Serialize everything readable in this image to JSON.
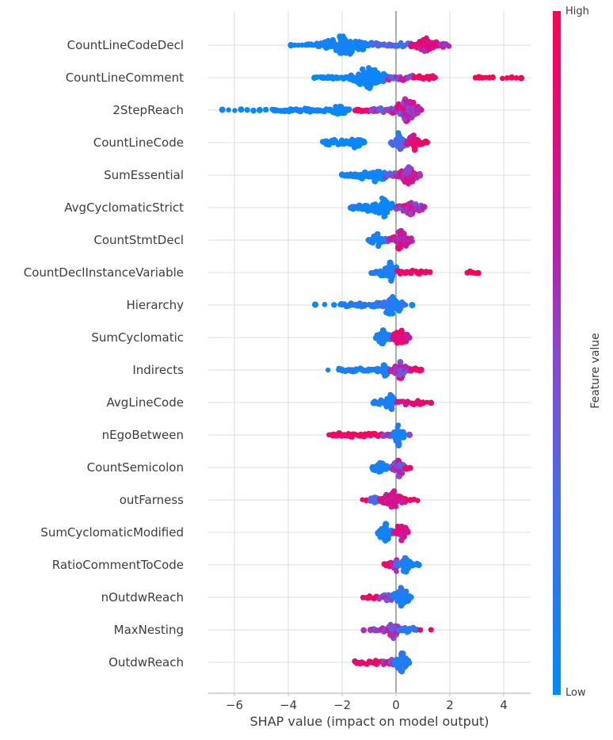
{
  "chart_data": {
    "type": "scatter",
    "variant": "shap-beeswarm-summary",
    "xlabel": "SHAP value (impact on model output)",
    "xlim": [
      -6.95,
      5.05
    ],
    "x_ticks": [
      {
        "v": -6,
        "label": "−6"
      },
      {
        "v": -4,
        "label": "−4"
      },
      {
        "v": -2,
        "label": "−2"
      },
      {
        "v": 0,
        "label": "0"
      },
      {
        "v": 2,
        "label": "2"
      },
      {
        "v": 4,
        "label": "4"
      }
    ],
    "grid": true,
    "colorbar": {
      "title": "Feature value",
      "high_label": "High",
      "low_label": "Low",
      "stops": [
        {
          "pos": 0.0,
          "color": "#008bfb"
        },
        {
          "pos": 0.3,
          "color": "#4b6ae8"
        },
        {
          "pos": 0.5,
          "color": "#8c47cf"
        },
        {
          "pos": 0.65,
          "color": "#b820ab"
        },
        {
          "pos": 0.8,
          "color": "#dd0d85"
        },
        {
          "pos": 1.0,
          "color": "#ff0051"
        }
      ]
    },
    "colors": {
      "low": "#008bfb",
      "high": "#ff0051",
      "grid": "#dcdcdc",
      "zero_line": "#999999",
      "axis_line": "#c9c9c9",
      "text": "#3d3d3d"
    },
    "cluster_format": [
      "x_start",
      "x_end",
      "n_points",
      "v_spread_px",
      "shape",
      "color_t_mean",
      "color_t_jitter"
    ],
    "features": [
      {
        "name": "CountLineCodeDecl",
        "clusters": [
          [
            -3.9,
            -3.35,
            5,
            1.2,
            "sparse",
            0.04,
            0.04
          ],
          [
            -3.35,
            -2.95,
            7,
            2,
            "line",
            0.05,
            0.05
          ],
          [
            -2.95,
            -1.0,
            80,
            13,
            "blob",
            0.08,
            0.1
          ],
          [
            -1.0,
            0.55,
            22,
            3.5,
            "line",
            0.3,
            0.25
          ],
          [
            0.55,
            1.65,
            42,
            10,
            "blob",
            0.8,
            0.22
          ],
          [
            1.65,
            2.0,
            6,
            3,
            "line",
            0.55,
            0.15
          ]
        ]
      },
      {
        "name": "CountLineComment",
        "clusters": [
          [
            -3.0,
            -1.7,
            20,
            2.5,
            "line",
            0.04,
            0.06
          ],
          [
            -1.7,
            -0.35,
            65,
            15,
            "blob",
            0.04,
            0.08
          ],
          [
            -0.35,
            0.65,
            18,
            4,
            "line",
            0.5,
            0.3
          ],
          [
            0.65,
            1.5,
            13,
            3,
            "line",
            0.93,
            0.08
          ],
          [
            2.95,
            3.6,
            6,
            1,
            "sparse",
            0.97,
            0.03
          ],
          [
            3.95,
            4.65,
            5,
            1,
            "sparse",
            0.97,
            0.03
          ]
        ]
      },
      {
        "name": "2StepReach",
        "clusters": [
          [
            -6.45,
            -4.6,
            9,
            1.2,
            "sparse",
            0.03,
            0.03
          ],
          [
            -4.55,
            -2.55,
            30,
            2.5,
            "line",
            0.04,
            0.05
          ],
          [
            -2.5,
            -1.75,
            18,
            7,
            "blob",
            0.05,
            0.06
          ],
          [
            -1.55,
            -0.9,
            12,
            2.5,
            "line",
            0.88,
            0.12
          ],
          [
            -0.9,
            -0.2,
            15,
            3,
            "line",
            0.5,
            0.35
          ],
          [
            -0.2,
            0.95,
            60,
            15,
            "blob",
            0.62,
            0.32
          ]
        ]
      },
      {
        "name": "CountLineCode",
        "clusters": [
          [
            -2.75,
            -1.45,
            28,
            5,
            "line",
            0.05,
            0.07
          ],
          [
            -1.75,
            -1.15,
            16,
            9,
            "blob",
            0.05,
            0.07
          ],
          [
            -0.2,
            0.45,
            32,
            13,
            "blob",
            0.3,
            0.25
          ],
          [
            0.4,
            0.95,
            26,
            10,
            "blob",
            0.8,
            0.2
          ],
          [
            0.9,
            1.15,
            5,
            2.5,
            "line",
            0.93,
            0.07
          ]
        ]
      },
      {
        "name": "SumEssential",
        "clusters": [
          [
            -2.0,
            -0.4,
            45,
            10,
            "taper-l",
            0.06,
            0.08
          ],
          [
            -0.4,
            0.0,
            10,
            4,
            "line",
            0.45,
            0.25
          ],
          [
            0.0,
            0.9,
            42,
            12,
            "blob",
            0.68,
            0.28
          ]
        ]
      },
      {
        "name": "AvgCyclomaticStrict",
        "clusters": [
          [
            -1.7,
            -0.15,
            55,
            13,
            "taper-l",
            0.05,
            0.08
          ],
          [
            0.0,
            1.05,
            40,
            9,
            "blob",
            0.6,
            0.3
          ]
        ]
      },
      {
        "name": "CountStmtDecl",
        "clusters": [
          [
            -1.0,
            -0.3,
            24,
            8,
            "blob",
            0.1,
            0.1
          ],
          [
            -0.3,
            0.6,
            40,
            12,
            "blob",
            0.65,
            0.3
          ]
        ]
      },
      {
        "name": "CountDeclInstanceVariable",
        "clusters": [
          [
            -0.9,
            0.0,
            40,
            13,
            "taper-l",
            0.1,
            0.1
          ],
          [
            0.05,
            1.3,
            20,
            3,
            "line",
            0.93,
            0.08
          ],
          [
            2.65,
            3.05,
            5,
            1.2,
            "sparse",
            0.97,
            0.03
          ]
        ]
      },
      {
        "name": "Hierarchy",
        "clusters": [
          [
            -3.0,
            -2.3,
            3,
            1,
            "sparse",
            0.04,
            0.03
          ],
          [
            -2.1,
            -0.7,
            24,
            2.5,
            "line",
            0.1,
            0.15
          ],
          [
            -0.7,
            0.35,
            40,
            13,
            "blob",
            0.15,
            0.18
          ],
          [
            0.55,
            0.65,
            1,
            1,
            "sparse",
            0.05,
            0
          ]
        ]
      },
      {
        "name": "SumCyclomatic",
        "clusters": [
          [
            -0.75,
            -0.18,
            28,
            10,
            "blob",
            0.1,
            0.1
          ],
          [
            -0.12,
            0.5,
            32,
            11,
            "blob",
            0.8,
            0.2
          ]
        ]
      },
      {
        "name": "Indirects",
        "clusters": [
          [
            -2.6,
            -2.45,
            1,
            1,
            "sparse",
            0.05,
            0
          ],
          [
            -2.15,
            -0.6,
            28,
            2.5,
            "line",
            0.1,
            0.12
          ],
          [
            -0.6,
            -0.2,
            20,
            9,
            "blob",
            0.12,
            0.12
          ],
          [
            -0.2,
            0.55,
            34,
            12,
            "blob",
            0.6,
            0.3
          ],
          [
            0.55,
            0.95,
            7,
            2.5,
            "line",
            0.88,
            0.1
          ]
        ]
      },
      {
        "name": "AvgLineCode",
        "clusters": [
          [
            -0.85,
            -0.02,
            36,
            11,
            "taper-l",
            0.12,
            0.12
          ],
          [
            0.02,
            0.9,
            15,
            3.5,
            "line",
            0.82,
            0.18
          ],
          [
            1.0,
            1.3,
            3,
            1.2,
            "sparse",
            0.93,
            0.05
          ]
        ]
      },
      {
        "name": "nEgoBetween",
        "clusters": [
          [
            -2.5,
            -0.5,
            34,
            2.8,
            "line",
            0.93,
            0.08
          ],
          [
            -0.5,
            -0.15,
            10,
            4,
            "line",
            0.55,
            0.3
          ],
          [
            -0.15,
            0.3,
            30,
            14,
            "blob",
            0.1,
            0.12
          ],
          [
            0.45,
            0.55,
            1,
            1,
            "sparse",
            0.5,
            0
          ]
        ]
      },
      {
        "name": "CountSemicolon",
        "clusters": [
          [
            -0.9,
            -0.3,
            22,
            8,
            "blob",
            0.08,
            0.1
          ],
          [
            -0.15,
            0.35,
            34,
            12,
            "blob",
            0.5,
            0.35
          ],
          [
            0.35,
            0.55,
            5,
            2,
            "line",
            0.9,
            0.1
          ]
        ]
      },
      {
        "name": "outFarness",
        "clusters": [
          [
            -1.25,
            -1.1,
            2,
            1.2,
            "sparse",
            0.95,
            0.03
          ],
          [
            -0.95,
            -0.6,
            10,
            6,
            "blob",
            0.3,
            0.25
          ],
          [
            -0.6,
            0.35,
            58,
            13,
            "blob",
            0.78,
            0.25
          ],
          [
            0.4,
            0.8,
            4,
            2,
            "sparse",
            0.92,
            0.05
          ]
        ]
      },
      {
        "name": "SumCyclomaticModified",
        "clusters": [
          [
            -0.68,
            -0.12,
            34,
            12,
            "blob",
            0.1,
            0.12
          ],
          [
            -0.08,
            0.45,
            30,
            11,
            "blob",
            0.82,
            0.18
          ]
        ]
      },
      {
        "name": "RatioCommentToCode",
        "clusters": [
          [
            -0.45,
            -0.08,
            10,
            3,
            "line",
            0.9,
            0.1
          ],
          [
            -0.1,
            0.12,
            16,
            9,
            "blob",
            0.55,
            0.3
          ],
          [
            0.1,
            0.6,
            26,
            10,
            "blob",
            0.12,
            0.15
          ],
          [
            0.6,
            0.85,
            4,
            2,
            "line",
            0.1,
            0.1
          ]
        ]
      },
      {
        "name": "nOutdwReach",
        "clusters": [
          [
            -1.2,
            -0.62,
            9,
            2.5,
            "line",
            0.92,
            0.08
          ],
          [
            -0.62,
            -0.12,
            15,
            4.5,
            "line",
            0.55,
            0.25
          ],
          [
            -0.12,
            0.55,
            36,
            13,
            "blob",
            0.12,
            0.15
          ]
        ]
      },
      {
        "name": "MaxNesting",
        "clusters": [
          [
            -1.25,
            -1.15,
            1,
            1,
            "sparse",
            0.6,
            0
          ],
          [
            -0.95,
            -0.35,
            13,
            3,
            "line",
            0.55,
            0.25
          ],
          [
            -0.35,
            0.12,
            28,
            11,
            "blob",
            0.6,
            0.3
          ],
          [
            0.12,
            0.8,
            13,
            3.5,
            "line",
            0.18,
            0.15
          ],
          [
            0.9,
            1.3,
            2,
            1.2,
            "sparse",
            0.95,
            0.03
          ]
        ]
      },
      {
        "name": "OutdwReach",
        "clusters": [
          [
            -1.55,
            -0.45,
            16,
            2.8,
            "line",
            0.9,
            0.1
          ],
          [
            -0.45,
            -0.08,
            12,
            5,
            "line",
            0.6,
            0.3
          ],
          [
            -0.08,
            0.5,
            32,
            13,
            "blob",
            0.12,
            0.15
          ]
        ]
      }
    ]
  }
}
